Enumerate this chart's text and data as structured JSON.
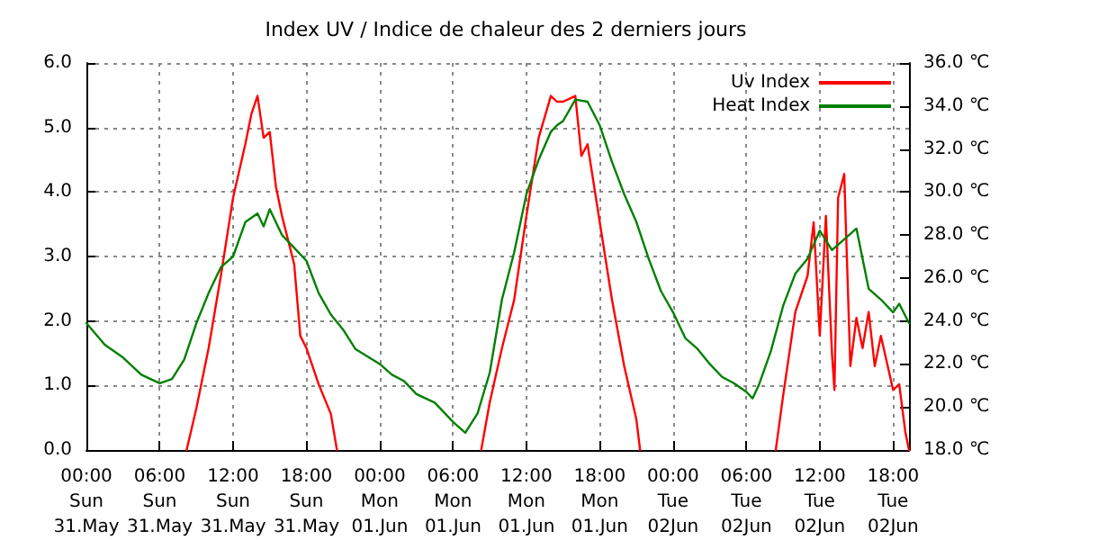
{
  "chart_data": {
    "type": "line",
    "title": "Index UV / Indice de chaleur des 2 derniers jours",
    "xlim": [
      "--05-31T00:00",
      "--06-02T19:18"
    ],
    "xticks": [
      {
        "value": "--05-31T00:00",
        "label": "00:00\nSun\n31.May"
      },
      {
        "value": "--05-31T06:00",
        "label": "06:00\nSun\n31.May"
      },
      {
        "value": "--05-31T12:00",
        "label": "12:00\nSun\n31.May"
      },
      {
        "value": "--05-31T18:00",
        "label": "18:00\nSun\n31.May"
      },
      {
        "value": "--06-01T00:00",
        "label": "00:00\nMon\n01.Jun"
      },
      {
        "value": "--06-01T06:00",
        "label": "06:00\nMon\n01.Jun"
      },
      {
        "value": "--06-01T12:00",
        "label": "12:00\nMon\n01.Jun"
      },
      {
        "value": "--06-01T18:00",
        "label": "18:00\nMon\n01.Jun"
      },
      {
        "value": "--06-02T00:00",
        "label": "00:00\nTue\n02Jun"
      },
      {
        "value": "--06-02T06:00",
        "label": "06:00\nTue\n02Jun"
      },
      {
        "value": "--06-02T12:00",
        "label": "12:00\nTue\n02Jun"
      },
      {
        "value": "--06-02T18:00",
        "label": "18:00\nTue\n02Jun"
      }
    ],
    "ylim": [
      0,
      6
    ],
    "yticks": [
      {
        "value": 0,
        "label": "0.0"
      },
      {
        "value": 1,
        "label": "1.0"
      },
      {
        "value": 2,
        "label": "2.0"
      },
      {
        "value": 3,
        "label": "3.0"
      },
      {
        "value": 4,
        "label": "4.0"
      },
      {
        "value": 5,
        "label": "5.0"
      },
      {
        "value": 6,
        "label": "6.0"
      }
    ],
    "y2lim": [
      18,
      36
    ],
    "y2ticks": [
      {
        "value": 18,
        "label": "18.0 ℃"
      },
      {
        "value": 20,
        "label": "20.0 ℃"
      },
      {
        "value": 22,
        "label": "22.0 ℃"
      },
      {
        "value": 24,
        "label": "24.0 ℃"
      },
      {
        "value": 26,
        "label": "26.0 ℃"
      },
      {
        "value": 28,
        "label": "28.0 ℃"
      },
      {
        "value": 30,
        "label": "30.0 ℃"
      },
      {
        "value": 32,
        "label": "32.0 ℃"
      },
      {
        "value": 34,
        "label": "34.0 ℃"
      },
      {
        "value": 36,
        "label": "36.0 ℃"
      }
    ],
    "grid": true,
    "legend": "top right",
    "marker": "none",
    "line_style": "solid",
    "series": [
      {
        "name": "Uv Index",
        "color": "#ff0000",
        "x": [
          "--05-31T08:12",
          "--05-31T09:00",
          "--05-31T10:00",
          "--05-31T11:00",
          "--05-31T12:00",
          "--05-31T13:00",
          "--05-31T13:30",
          "--05-31T14:00",
          "--05-31T14:30",
          "--05-31T15:00",
          "--05-31T15:30",
          "--05-31T16:00",
          "--05-31T17:00",
          "--05-31T17:30",
          "--05-31T18:00",
          "--05-31T19:00",
          "--05-31T20:00",
          "--05-31T20:30",
          "--06-01T02:00",
          "--06-01T08:18",
          "--06-01T09:00",
          "--06-01T10:00",
          "--06-01T11:00",
          "--06-01T12:00",
          "--06-01T13:00",
          "--06-01T14:00",
          "--06-01T14:30",
          "--06-01T15:00",
          "--06-01T16:00",
          "--06-01T16:30",
          "--06-01T17:00",
          "--06-01T18:00",
          "--06-01T19:00",
          "--06-01T20:00",
          "--06-01T21:00",
          "--06-01T21:18",
          "--06-02T02:00",
          "--06-02T08:24",
          "--06-02T09:00",
          "--06-02T10:00",
          "--06-02T11:00",
          "--06-02T11:30",
          "--06-02T12:00",
          "--06-02T12:30",
          "--06-02T13:00",
          "--06-02T13:12",
          "--06-02T13:30",
          "--06-02T14:00",
          "--06-02T14:30",
          "--06-02T15:00",
          "--06-02T15:30",
          "--06-02T16:00",
          "--06-02T16:30",
          "--06-02T17:00",
          "--06-02T18:00",
          "--06-02T18:30",
          "--06-02T19:00",
          "--06-02T19:18"
        ],
        "values": [
          0,
          0.65,
          1.58,
          2.7,
          3.91,
          4.74,
          5.21,
          5.49,
          4.84,
          4.93,
          4.09,
          3.63,
          2.88,
          1.77,
          1.58,
          1.02,
          0.56,
          0,
          null,
          0,
          0.74,
          1.58,
          2.33,
          3.63,
          4.84,
          5.49,
          5.4,
          5.4,
          5.49,
          4.56,
          4.74,
          3.53,
          2.33,
          1.3,
          0.47,
          0,
          null,
          0,
          0.84,
          2.14,
          2.7,
          3.53,
          1.77,
          3.63,
          1.49,
          0.93,
          3.91,
          4.28,
          1.3,
          2.05,
          1.58,
          2.14,
          1.3,
          1.77,
          0.93,
          1.02,
          0.28,
          0
        ]
      },
      {
        "name": "Heat Index",
        "color": "#008000",
        "axis": "y2",
        "x": [
          "--05-31T00:00",
          "--05-31T01:30",
          "--05-31T03:00",
          "--05-31T04:30",
          "--05-31T06:00",
          "--05-31T07:00",
          "--05-31T08:00",
          "--05-31T09:00",
          "--05-31T10:00",
          "--05-31T11:00",
          "--05-31T12:00",
          "--05-31T13:00",
          "--05-31T14:00",
          "--05-31T14:30",
          "--05-31T15:00",
          "--05-31T16:00",
          "--05-31T17:00",
          "--05-31T18:00",
          "--05-31T19:00",
          "--05-31T20:00",
          "--05-31T21:00",
          "--05-31T22:00",
          "--06-01T00:00",
          "--06-01T01:00",
          "--06-01T02:00",
          "--06-01T03:00",
          "--06-01T04:30",
          "--06-01T06:00",
          "--06-01T07:00",
          "--06-01T08:00",
          "--06-01T09:00",
          "--06-01T10:00",
          "--06-01T11:00",
          "--06-01T12:00",
          "--06-01T13:00",
          "--06-01T14:00",
          "--06-01T14:30",
          "--06-01T15:00",
          "--06-01T16:00",
          "--06-01T17:00",
          "--06-01T18:00",
          "--06-01T19:00",
          "--06-01T20:00",
          "--06-01T21:00",
          "--06-01T22:00",
          "--06-01T23:00",
          "--06-02T00:00",
          "--06-02T01:00",
          "--06-02T02:00",
          "--06-02T03:00",
          "--06-02T04:00",
          "--06-02T05:00",
          "--06-02T06:00",
          "--06-02T06:30",
          "--06-02T07:00",
          "--06-02T08:00",
          "--06-02T09:00",
          "--06-02T10:00",
          "--06-02T11:00",
          "--06-02T12:00",
          "--06-02T13:00",
          "--06-02T14:00",
          "--06-02T15:00",
          "--06-02T16:00",
          "--06-02T17:00",
          "--06-02T18:00",
          "--06-02T18:30",
          "--06-02T19:18"
        ],
        "values": [
          23.9,
          22.9,
          22.3,
          21.5,
          21.1,
          21.3,
          22.2,
          23.9,
          25.3,
          26.5,
          27,
          28.6,
          29,
          28.4,
          29.2,
          28,
          27.4,
          26.8,
          25.3,
          24.3,
          23.6,
          22.7,
          22,
          21.5,
          21.2,
          20.6,
          20.2,
          19.3,
          18.8,
          19.7,
          21.6,
          25,
          27.2,
          29.9,
          31.5,
          32.8,
          33.1,
          33.3,
          34.3,
          34.2,
          33.1,
          31.4,
          29.9,
          28.6,
          26.9,
          25.4,
          24.4,
          23.2,
          22.7,
          22,
          21.4,
          21.1,
          20.7,
          20.4,
          21,
          22.6,
          24.7,
          26.2,
          26.9,
          28.2,
          27.3,
          27.8,
          28.3,
          25.5,
          25,
          24.4,
          24.8,
          23.9
        ]
      }
    ]
  }
}
